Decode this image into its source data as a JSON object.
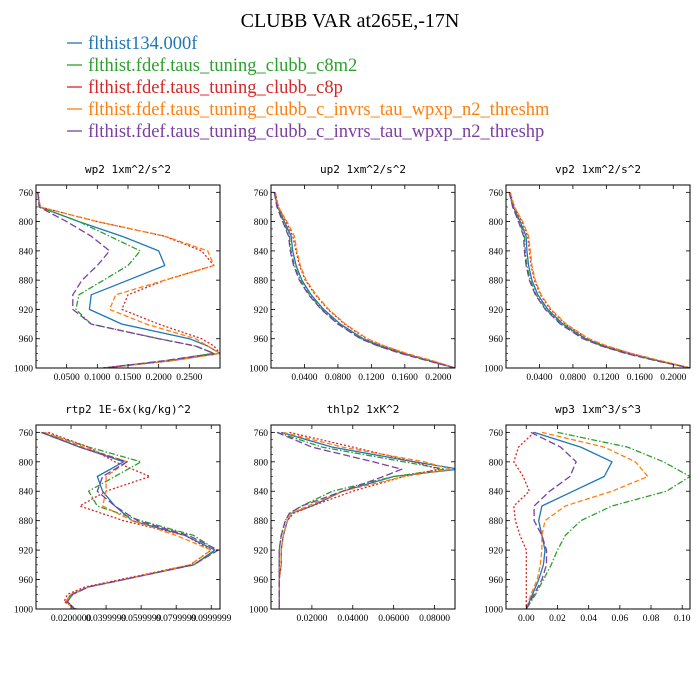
{
  "title": "CLUBB VAR at265E,-17N",
  "colors": [
    "#1f77b4",
    "#2ca02c",
    "#d62728",
    "#ff7f0e",
    "#7b3fa0"
  ],
  "legend": [
    {
      "label": "flthist134.000f",
      "color": "#1f77b4",
      "style": "solid"
    },
    {
      "label": "flthist.fdef.taus_tuning_clubb_c8m2",
      "color": "#2ca02c",
      "style": "dashdot"
    },
    {
      "label": "flthist.fdef.taus_tuning_clubb_c8p",
      "color": "#d62728",
      "style": "dotted"
    },
    {
      "label": "flthist.fdef.taus_tuning_clubb_c_invrs_tau_wpxp_n2_threshm",
      "color": "#ff7f0e",
      "style": "dashed"
    },
    {
      "label": "flthist.fdef.taus_tuning_clubb_c_invrs_tau_wpxp_n2_threshp",
      "color": "#7b3fa0",
      "style": "longdash"
    }
  ],
  "chart_data": [
    {
      "type": "line",
      "title": "wp2  1xm^2/s^2",
      "xlim": [
        0.0,
        0.3
      ],
      "ylim": [
        750,
        1000
      ],
      "y_inverted": true,
      "xticks": [
        0.05,
        0.1,
        0.15,
        0.2,
        0.25
      ],
      "xtick_labels": [
        "0.0500",
        "0.1000",
        "0.1500",
        "0.2000",
        "0.2500"
      ],
      "yticks": [
        760,
        800,
        840,
        880,
        920,
        960,
        1000
      ],
      "y": [
        760,
        780,
        800,
        820,
        840,
        860,
        880,
        900,
        920,
        940,
        960,
        970,
        980,
        990,
        1000
      ],
      "series": [
        {
          "values": [
            0.003,
            0.006,
            0.07,
            0.14,
            0.2,
            0.21,
            0.15,
            0.09,
            0.087,
            0.14,
            0.25,
            0.28,
            0.3,
            0.22,
            0.11
          ]
        },
        {
          "values": [
            0.003,
            0.006,
            0.07,
            0.12,
            0.17,
            0.15,
            0.11,
            0.07,
            0.065,
            0.09,
            0.2,
            0.26,
            0.29,
            0.21,
            0.11
          ]
        },
        {
          "values": [
            0.003,
            0.007,
            0.1,
            0.21,
            0.27,
            0.29,
            0.21,
            0.15,
            0.14,
            0.2,
            0.27,
            0.29,
            0.3,
            0.22,
            0.11
          ]
        },
        {
          "values": [
            0.003,
            0.007,
            0.1,
            0.21,
            0.28,
            0.29,
            0.21,
            0.13,
            0.12,
            0.18,
            0.26,
            0.28,
            0.3,
            0.22,
            0.11
          ]
        },
        {
          "values": [
            0.003,
            0.005,
            0.05,
            0.09,
            0.12,
            0.1,
            0.075,
            0.06,
            0.06,
            0.09,
            0.2,
            0.26,
            0.29,
            0.21,
            0.11
          ]
        }
      ]
    },
    {
      "type": "line",
      "title": "up2  1xm^2/s^2",
      "xlim": [
        0.0,
        0.22
      ],
      "ylim": [
        750,
        1000
      ],
      "y_inverted": true,
      "xticks": [
        0.04,
        0.08,
        0.12,
        0.16,
        0.2
      ],
      "xtick_labels": [
        "0.0400",
        "0.0800",
        "0.1200",
        "0.1600",
        "0.2000"
      ],
      "yticks": [
        760,
        800,
        840,
        880,
        920,
        960,
        1000
      ],
      "y": [
        760,
        780,
        800,
        820,
        840,
        860,
        880,
        900,
        920,
        940,
        960,
        970,
        980,
        990,
        1000
      ],
      "series": [
        {
          "values": [
            0.004,
            0.008,
            0.016,
            0.024,
            0.026,
            0.03,
            0.037,
            0.048,
            0.063,
            0.083,
            0.11,
            0.131,
            0.158,
            0.19,
            0.22
          ]
        },
        {
          "values": [
            0.004,
            0.008,
            0.015,
            0.022,
            0.024,
            0.028,
            0.035,
            0.046,
            0.061,
            0.081,
            0.108,
            0.129,
            0.156,
            0.188,
            0.22
          ]
        },
        {
          "values": [
            0.005,
            0.009,
            0.018,
            0.026,
            0.03,
            0.034,
            0.041,
            0.053,
            0.068,
            0.088,
            0.114,
            0.135,
            0.161,
            0.192,
            0.22
          ]
        },
        {
          "values": [
            0.005,
            0.009,
            0.019,
            0.028,
            0.031,
            0.035,
            0.042,
            0.054,
            0.069,
            0.089,
            0.115,
            0.136,
            0.162,
            0.193,
            0.22
          ]
        },
        {
          "values": [
            0.004,
            0.007,
            0.014,
            0.021,
            0.023,
            0.027,
            0.034,
            0.045,
            0.06,
            0.08,
            0.107,
            0.128,
            0.155,
            0.187,
            0.22
          ]
        }
      ]
    },
    {
      "type": "line",
      "title": "vp2  1xm^2/s^2",
      "xlim": [
        0.0,
        0.22
      ],
      "ylim": [
        750,
        1000
      ],
      "y_inverted": true,
      "xticks": [
        0.04,
        0.08,
        0.12,
        0.16,
        0.2
      ],
      "xtick_labels": [
        "0.0400",
        "0.0800",
        "0.1200",
        "0.1600",
        "0.2000"
      ],
      "yticks": [
        760,
        800,
        840,
        880,
        920,
        960,
        1000
      ],
      "y": [
        760,
        780,
        800,
        820,
        840,
        860,
        880,
        900,
        920,
        940,
        960,
        970,
        980,
        990,
        1000
      ],
      "series": [
        {
          "values": [
            0.004,
            0.009,
            0.017,
            0.024,
            0.025,
            0.027,
            0.031,
            0.038,
            0.05,
            0.068,
            0.095,
            0.117,
            0.146,
            0.182,
            0.22
          ]
        },
        {
          "values": [
            0.004,
            0.008,
            0.016,
            0.022,
            0.023,
            0.025,
            0.029,
            0.036,
            0.048,
            0.066,
            0.093,
            0.115,
            0.144,
            0.18,
            0.22
          ]
        },
        {
          "values": [
            0.005,
            0.01,
            0.019,
            0.026,
            0.028,
            0.03,
            0.034,
            0.041,
            0.053,
            0.071,
            0.098,
            0.12,
            0.149,
            0.184,
            0.22
          ]
        },
        {
          "values": [
            0.005,
            0.01,
            0.02,
            0.027,
            0.029,
            0.031,
            0.035,
            0.042,
            0.054,
            0.072,
            0.099,
            0.121,
            0.15,
            0.185,
            0.22
          ]
        },
        {
          "values": [
            0.004,
            0.008,
            0.015,
            0.021,
            0.022,
            0.024,
            0.028,
            0.035,
            0.047,
            0.065,
            0.092,
            0.114,
            0.143,
            0.179,
            0.22
          ]
        }
      ]
    },
    {
      "type": "line",
      "title": "rtp2  1E-6x(kg/kg)^2",
      "xlim": [
        0.0,
        0.105
      ],
      "ylim": [
        750,
        1000
      ],
      "y_inverted": true,
      "xticks": [
        0.02,
        0.04,
        0.06,
        0.08,
        0.1
      ],
      "xtick_labels": [
        "0.0200000",
        "0.0399999",
        "0.0599999",
        "0.0799999",
        "0.0999999"
      ],
      "yticks": [
        760,
        800,
        840,
        880,
        920,
        960,
        1000
      ],
      "y": [
        760,
        780,
        800,
        820,
        840,
        860,
        880,
        900,
        920,
        940,
        960,
        970,
        980,
        990,
        1000
      ],
      "series": [
        {
          "values": [
            0.003,
            0.025,
            0.05,
            0.035,
            0.038,
            0.045,
            0.055,
            0.085,
            0.102,
            0.09,
            0.05,
            0.03,
            0.02,
            0.017,
            0.022
          ]
        },
        {
          "values": [
            0.004,
            0.03,
            0.06,
            0.045,
            0.03,
            0.035,
            0.06,
            0.09,
            0.103,
            0.09,
            0.05,
            0.03,
            0.021,
            0.018,
            0.022
          ]
        },
        {
          "values": [
            0.007,
            0.03,
            0.045,
            0.065,
            0.04,
            0.025,
            0.05,
            0.085,
            0.1,
            0.088,
            0.048,
            0.028,
            0.018,
            0.016,
            0.023
          ]
        },
        {
          "values": [
            0.005,
            0.027,
            0.052,
            0.04,
            0.04,
            0.038,
            0.055,
            0.08,
            0.1,
            0.088,
            0.05,
            0.03,
            0.02,
            0.017,
            0.022
          ]
        },
        {
          "values": [
            0.003,
            0.025,
            0.052,
            0.038,
            0.035,
            0.045,
            0.058,
            0.087,
            0.104,
            0.09,
            0.05,
            0.03,
            0.021,
            0.018,
            0.022
          ]
        }
      ]
    },
    {
      "type": "line",
      "title": "thlp2  1xK^2",
      "xlim": [
        0.0,
        0.09
      ],
      "ylim": [
        750,
        1000
      ],
      "y_inverted": true,
      "xticks": [
        0.02,
        0.04,
        0.06,
        0.08
      ],
      "xtick_labels": [
        "0.02000",
        "0.04000",
        "0.06000",
        "0.08000"
      ],
      "yticks": [
        760,
        800,
        840,
        880,
        920,
        960,
        1000
      ],
      "y": [
        760,
        780,
        800,
        810,
        820,
        840,
        860,
        870,
        880,
        900,
        920,
        940,
        960,
        980,
        1000
      ],
      "series": [
        {
          "values": [
            0.005,
            0.03,
            0.07,
            0.092,
            0.06,
            0.035,
            0.02,
            0.01,
            0.008,
            0.006,
            0.005,
            0.005,
            0.004,
            0.004,
            0.004
          ]
        },
        {
          "values": [
            0.003,
            0.025,
            0.065,
            0.085,
            0.06,
            0.03,
            0.015,
            0.009,
            0.007,
            0.005,
            0.004,
            0.004,
            0.004,
            0.004,
            0.004
          ]
        },
        {
          "values": [
            0.009,
            0.04,
            0.07,
            0.082,
            0.065,
            0.04,
            0.02,
            0.011,
            0.008,
            0.006,
            0.005,
            0.005,
            0.004,
            0.004,
            0.004
          ]
        },
        {
          "values": [
            0.006,
            0.035,
            0.075,
            0.088,
            0.065,
            0.035,
            0.018,
            0.01,
            0.008,
            0.006,
            0.005,
            0.005,
            0.004,
            0.004,
            0.004
          ]
        },
        {
          "values": [
            0.003,
            0.02,
            0.05,
            0.064,
            0.055,
            0.035,
            0.015,
            0.009,
            0.007,
            0.005,
            0.004,
            0.004,
            0.004,
            0.004,
            0.004
          ]
        }
      ]
    },
    {
      "type": "line",
      "title": "wp3  1xm^3/s^3",
      "xlim": [
        -0.013,
        0.105
      ],
      "ylim": [
        750,
        1000
      ],
      "y_inverted": true,
      "xticks": [
        0.0,
        0.02,
        0.04,
        0.06,
        0.08,
        0.1
      ],
      "xtick_labels": [
        "0.00",
        "0.02",
        "0.04",
        "0.06",
        "0.08",
        "0.10"
      ],
      "yticks": [
        760,
        800,
        840,
        880,
        920,
        960,
        1000
      ],
      "y": [
        760,
        780,
        800,
        820,
        840,
        860,
        880,
        900,
        920,
        940,
        960,
        980,
        1000
      ],
      "series": [
        {
          "values": [
            0.005,
            0.035,
            0.055,
            0.05,
            0.03,
            0.01,
            0.008,
            0.01,
            0.012,
            0.011,
            0.008,
            0.004,
            0.0
          ]
        },
        {
          "values": [
            0.02,
            0.065,
            0.088,
            0.105,
            0.09,
            0.055,
            0.035,
            0.025,
            0.02,
            0.016,
            0.011,
            0.006,
            0.0
          ]
        },
        {
          "values": [
            0.005,
            -0.005,
            -0.008,
            -0.002,
            0.002,
            -0.008,
            -0.007,
            -0.004,
            0.0,
            0.0,
            0.0,
            0.0,
            0.0
          ]
        },
        {
          "values": [
            0.01,
            0.05,
            0.07,
            0.078,
            0.055,
            0.025,
            0.012,
            0.01,
            0.01,
            0.009,
            0.007,
            0.003,
            0.0
          ]
        },
        {
          "values": [
            0.003,
            0.022,
            0.032,
            0.028,
            0.015,
            0.005,
            0.005,
            0.01,
            0.013,
            0.013,
            0.01,
            0.005,
            0.0
          ]
        }
      ]
    }
  ]
}
